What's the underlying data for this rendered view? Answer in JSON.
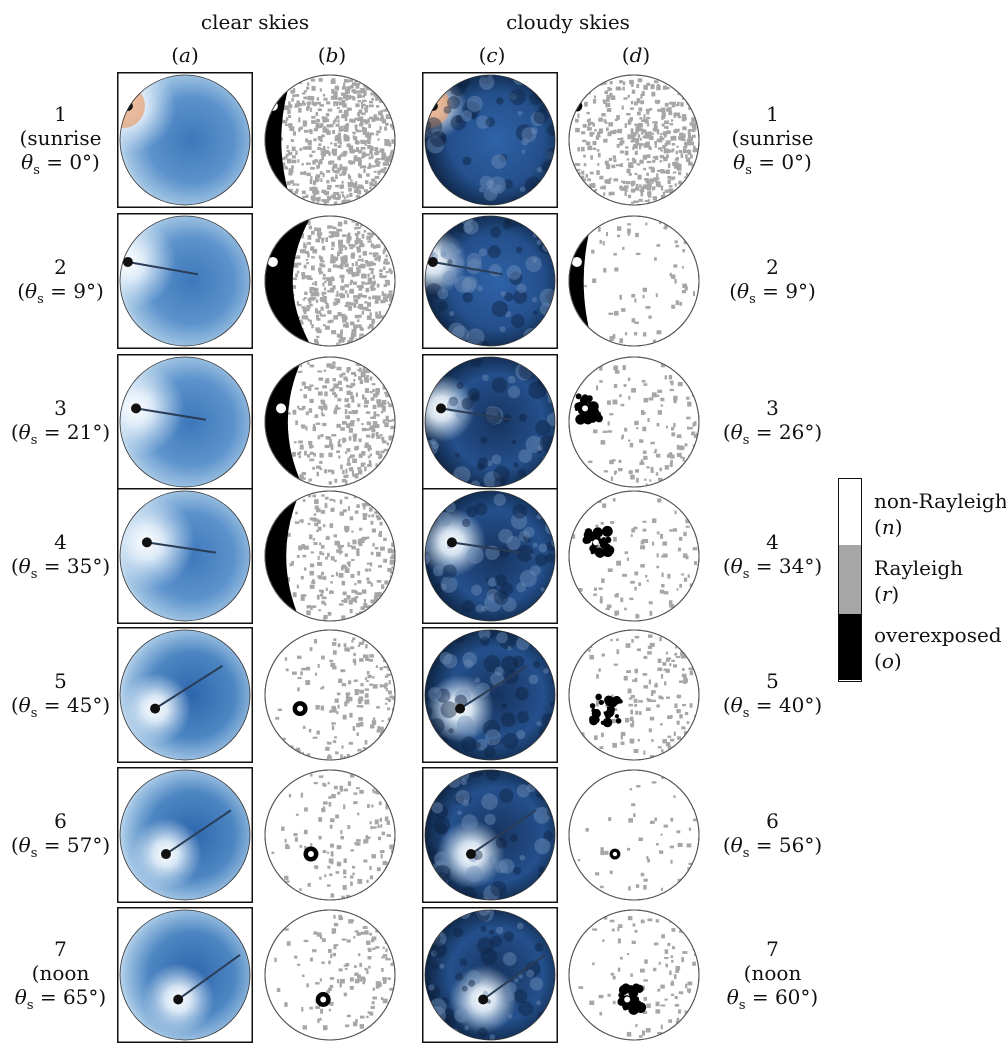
{
  "groups": {
    "clear": "clear skies",
    "cloudy": "cloudy skies"
  },
  "columns": [
    {
      "open": "(",
      "letter": "a",
      "close": ")"
    },
    {
      "open": "(",
      "letter": "b",
      "close": ")"
    },
    {
      "open": "(",
      "letter": "c",
      "close": ")"
    },
    {
      "open": "(",
      "letter": "d",
      "close": ")"
    }
  ],
  "theta_symbol": "θ",
  "theta_sub": "s",
  "rows": [
    {
      "num": "1",
      "left": {
        "pre": "(sunrise",
        "val": "= 0°)"
      },
      "right": {
        "pre": "(sunrise",
        "val": "= 0°)"
      }
    },
    {
      "num": "2",
      "left": {
        "pre": "(",
        "val": "= 9°)"
      },
      "right": {
        "pre": "(",
        "val": "= 9°)"
      }
    },
    {
      "num": "3",
      "left": {
        "pre": "(",
        "val": "= 21°)"
      },
      "right": {
        "pre": "(",
        "val": "= 26°)"
      }
    },
    {
      "num": "4",
      "left": {
        "pre": "(",
        "val": "= 35°)"
      },
      "right": {
        "pre": "(",
        "val": "= 34°)"
      }
    },
    {
      "num": "5",
      "left": {
        "pre": "(",
        "val": "= 45°)"
      },
      "right": {
        "pre": "(",
        "val": "= 40°)"
      }
    },
    {
      "num": "6",
      "left": {
        "pre": "(",
        "val": "= 57°)"
      },
      "right": {
        "pre": "(",
        "val": "= 56°)"
      }
    },
    {
      "num": "7",
      "left": {
        "pre": "(noon",
        "val": "= 65°)"
      },
      "right": {
        "pre": "(noon",
        "val": "= 60°)"
      }
    }
  ],
  "legend": [
    {
      "name": "non-Rayleigh",
      "symbol": "n",
      "color": "#ffffff"
    },
    {
      "name": "Rayleigh",
      "symbol": "r",
      "color": "#a6a6a6"
    },
    {
      "name": "overexposed",
      "symbol": "o",
      "color": "#000000"
    }
  ],
  "colors": {
    "clear_center": "#2f6fb5",
    "clear_edge": "#d8e8f5",
    "cloudy_center": "#1e3f75",
    "cloudy_edge": "#0a1a33",
    "rayleigh_gray": "#a6a6a6",
    "overexposed": "#000000"
  }
}
